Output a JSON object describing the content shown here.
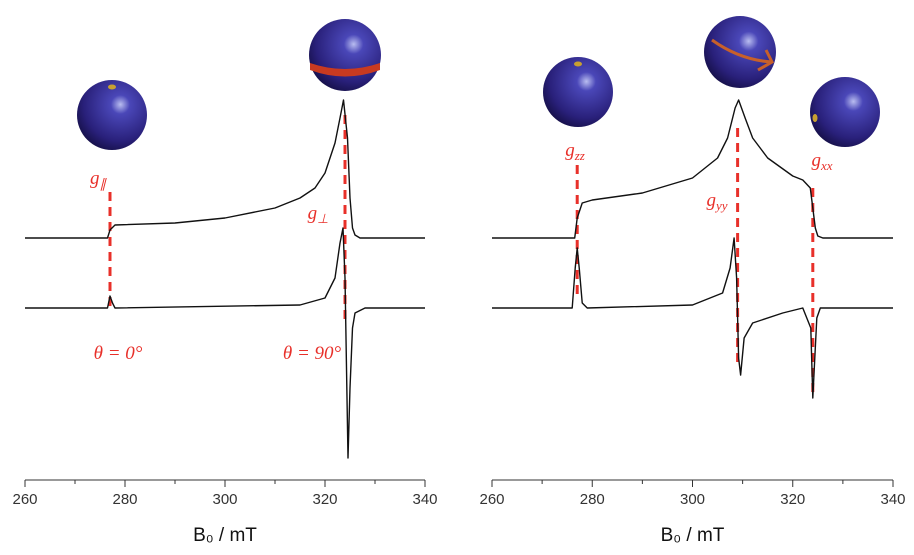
{
  "chart_data": [
    {
      "type": "line",
      "xlim": [
        260,
        340
      ],
      "xticks": [
        260,
        280,
        300,
        320,
        340
      ],
      "xlabel": "B₀ / mT",
      "series": [
        {
          "color": "#111111",
          "x": [
            260,
            276.5,
            277,
            278,
            290,
            300,
            310,
            315,
            318,
            320,
            322,
            323,
            323.7,
            324.5,
            325,
            325.5,
            326,
            327,
            340
          ],
          "values": [
            0,
            0,
            0.08,
            0.13,
            0.15,
            0.2,
            0.3,
            0.4,
            0.5,
            0.65,
            0.95,
            1.2,
            1.38,
            1.0,
            0.4,
            0.1,
            0.03,
            0,
            0
          ]
        },
        {
          "color": "#111111",
          "x": [
            260,
            276.5,
            277,
            277.5,
            278,
            315,
            320,
            322,
            323,
            323.6,
            324,
            324.3,
            324.6,
            325,
            325.5,
            326,
            328,
            340
          ],
          "values": [
            0,
            0,
            0.12,
            0.05,
            0,
            0.03,
            0.1,
            0.3,
            0.65,
            0.8,
            0.3,
            -0.6,
            -1.5,
            -0.8,
            -0.2,
            -0.05,
            0,
            0
          ]
        }
      ],
      "annotations": [
        {
          "text": "g",
          "sub": "∥",
          "x": 277,
          "color": "#e8302a"
        },
        {
          "text": "g",
          "sub": "⊥",
          "x": 324,
          "color": "#e8302a"
        },
        {
          "text": "θ = 0°",
          "color": "#e8302a"
        },
        {
          "text": "θ = 90°",
          "color": "#e8302a"
        }
      ]
    },
    {
      "type": "line",
      "xlim": [
        260,
        340
      ],
      "xticks": [
        260,
        280,
        300,
        320,
        340
      ],
      "xlabel": "B₀ / mT",
      "series": [
        {
          "color": "#111111",
          "x": [
            260,
            276.5,
            277,
            278,
            280,
            290,
            300,
            305,
            307,
            308.5,
            309.2,
            310.5,
            312,
            315,
            320,
            322,
            323.5,
            324,
            324.5,
            325,
            326,
            340
          ],
          "values": [
            0,
            0,
            0.2,
            0.35,
            0.38,
            0.45,
            0.6,
            0.8,
            1.0,
            1.3,
            1.38,
            1.2,
            1.0,
            0.8,
            0.62,
            0.58,
            0.5,
            0.3,
            0.1,
            0.02,
            0,
            0
          ]
        },
        {
          "color": "#111111",
          "x": [
            260,
            276,
            276.6,
            277,
            277.4,
            278,
            279,
            300,
            306,
            307.5,
            308.3,
            308.8,
            309.2,
            309.6,
            310.3,
            312,
            318,
            322,
            323.6,
            324,
            324.3,
            324.8,
            325.5,
            340
          ],
          "values": [
            0,
            0,
            0.4,
            0.6,
            0.4,
            0.05,
            0,
            0.03,
            0.15,
            0.4,
            0.7,
            0.3,
            -0.5,
            -0.67,
            -0.3,
            -0.15,
            -0.05,
            0,
            -0.2,
            -0.9,
            -0.6,
            -0.1,
            0,
            0
          ]
        }
      ],
      "annotations": [
        {
          "text": "g",
          "sub": "zz",
          "x": 277,
          "color": "#e8302a"
        },
        {
          "text": "g",
          "sub": "yy",
          "x": 309,
          "color": "#e8302a"
        },
        {
          "text": "g",
          "sub": "xx",
          "x": 324,
          "color": "#e8302a"
        }
      ]
    }
  ]
}
